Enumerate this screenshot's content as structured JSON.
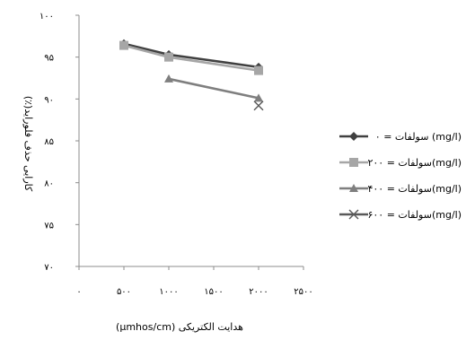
{
  "chart_data": {
    "type": "line",
    "title": "",
    "xlabel": "هدایت الکتریکی (µmhos/cm)",
    "ylabel": "کارایی حذف فلوراید(٪)",
    "xlim": [
      0,
      2500
    ],
    "ylim": [
      70,
      100
    ],
    "x_ticks": [
      0,
      500,
      1000,
      1500,
      2000,
      2500
    ],
    "x_tick_labels": [
      "۰",
      "۵۰۰",
      "۱۰۰۰",
      "۱۵۰۰",
      "۲۰۰۰",
      "۲۵۰۰"
    ],
    "y_ticks": [
      70,
      75,
      80,
      85,
      90,
      95,
      100
    ],
    "y_tick_labels": [
      "۷۰",
      "۷۵",
      "۸۰",
      "۸۵",
      "۹۰",
      "۹۵",
      "۱۰۰"
    ],
    "grid": false,
    "legend_position": "right",
    "series": [
      {
        "name": "سولفات = ۰ (mg/l)",
        "marker": "diamond",
        "color": "#404040",
        "x": [
          500,
          1000,
          2000
        ],
        "y": [
          96.6,
          95.3,
          93.8
        ]
      },
      {
        "name": "سولفات = ۲۰۰(mg/l)",
        "marker": "square",
        "color": "#a6a6a6",
        "x": [
          500,
          1000,
          2000
        ],
        "y": [
          96.4,
          95.0,
          93.4
        ]
      },
      {
        "name": "سولفات = ۴۰۰(mg/l)",
        "marker": "triangle",
        "color": "#7f7f7f",
        "x": [
          1000,
          2000
        ],
        "y": [
          92.4,
          90.1
        ]
      },
      {
        "name": "سولفات = ۶۰۰(mg/l)",
        "marker": "x",
        "color": "#595959",
        "x": [
          2000
        ],
        "y": [
          89.2
        ]
      }
    ]
  }
}
